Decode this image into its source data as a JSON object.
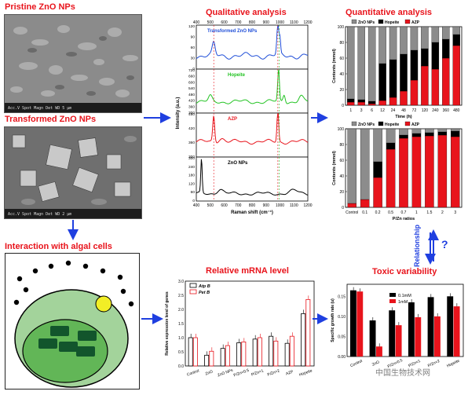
{
  "titles": {
    "pristine": "Pristine ZnO NPs",
    "transformed": "Transformed ZnO NPs",
    "qualitative": "Qualitative analysis",
    "quantitative": "Quantitative analysis",
    "interaction": "Interaction with algal cells",
    "mrna": "Relative mRNA level",
    "toxic": "Toxic variability",
    "relationship": "Relationship",
    "question": "?"
  },
  "sem": {
    "top_caption": "Acc.V  Spot Magn   Det  WD        5 μm",
    "bottom_caption": "Acc.V  Spot Magn   Det  WD        2 μm"
  },
  "colors": {
    "red": "#e8141c",
    "blue": "#1f4ed8",
    "arrow": "#1f3fe0",
    "green": "#22c322",
    "grey": "#8c8c8c",
    "black": "#000000",
    "cell_outer": "#a3d39b",
    "cell_inner": "#62b657",
    "chloroplast": "#12552c",
    "yellow": "#f2ee26"
  },
  "raman": {
    "x_label": "Raman shift (cm⁻¹)",
    "y_label": "Intensity (a.u.)",
    "x_ticks": [
      400,
      500,
      600,
      700,
      800,
      900,
      1000,
      1100,
      1200
    ],
    "panels": [
      {
        "label": "Transformed ZnO NPs",
        "color": "#1f4ed8",
        "y_ticks": [
          0,
          30,
          60,
          90,
          120
        ]
      },
      {
        "label": "Hopeite",
        "color": "#22c322",
        "y_ticks": [
          300,
          360,
          420,
          480,
          540,
          600,
          660,
          720
        ]
      },
      {
        "label": "AZP",
        "color": "#e8141c",
        "y_ticks": [
          300,
          360,
          420,
          480
        ]
      },
      {
        "label": "ZnO NPs",
        "color": "#000000",
        "y_ticks": [
          0,
          60,
          120,
          180,
          240,
          300
        ]
      }
    ]
  },
  "quant_time": {
    "legend": [
      "ZnO NPs",
      "Hopeite",
      "AZP"
    ],
    "x_label": "Time (h)",
    "y_label": "Contents (mmol)",
    "y_ticks": [
      0,
      20,
      40,
      60,
      80,
      100
    ],
    "categories": [
      "1",
      "3",
      "6",
      "12",
      "24",
      "48",
      "72",
      "120",
      "240",
      "360",
      "480"
    ],
    "zno": [
      92,
      93,
      95,
      47,
      42,
      35,
      30,
      28,
      20,
      16,
      10
    ],
    "hopeite": [
      4,
      3,
      3,
      47,
      48,
      47,
      38,
      22,
      34,
      24,
      14
    ],
    "azp": [
      4,
      4,
      2,
      6,
      10,
      18,
      32,
      50,
      46,
      60,
      76
    ]
  },
  "quant_ratio": {
    "legend": [
      "ZnO NPs",
      "Hopeite",
      "AZP"
    ],
    "x_label": "P/Zn ratios",
    "y_label": "Contents (mmol)",
    "y_ticks": [
      0,
      20,
      40,
      60,
      80,
      100
    ],
    "categories": [
      "Control",
      "0.1",
      "0.2",
      "0.5",
      "0.7",
      "1",
      "1.5",
      "2",
      "3"
    ],
    "zno": [
      95,
      90,
      42,
      18,
      8,
      6,
      5,
      4,
      3
    ],
    "hopeite": [
      0,
      0,
      20,
      8,
      4,
      4,
      4,
      4,
      7
    ],
    "azp": [
      5,
      10,
      38,
      74,
      88,
      90,
      91,
      92,
      90
    ]
  },
  "mrna": {
    "y_label": "Relative expression level of genes",
    "y_ticks": [
      0.0,
      0.5,
      1.0,
      1.5,
      2.0,
      2.5,
      3.0
    ],
    "legend": [
      "Atp B",
      "Pet B"
    ],
    "categories": [
      "Control",
      "ZnO",
      "ZnO NPs",
      "P/Zn=0.5",
      "P/Zn=1",
      "P/Zn=2",
      "AZP",
      "Hopeite"
    ],
    "atpb": [
      1.0,
      0.38,
      0.62,
      0.82,
      0.95,
      1.05,
      0.8,
      1.85
    ],
    "petb": [
      1.0,
      0.52,
      0.72,
      0.85,
      1.0,
      0.88,
      1.05,
      2.35
    ]
  },
  "toxic": {
    "y_label": "Specific growth rate (u)",
    "y_ticks": [
      0.0,
      0.05,
      0.1,
      0.15
    ],
    "legend": [
      "0.1mM",
      "1mM"
    ],
    "categories": [
      "Control",
      "ZnO",
      "P/Zn=0.5",
      "P/Zn=1",
      "P/Zn=2",
      "Hopeite"
    ],
    "mm01": [
      0.165,
      0.09,
      0.115,
      0.135,
      0.148,
      0.15
    ],
    "mm1": [
      0.162,
      0.025,
      0.078,
      0.098,
      0.1,
      0.125
    ]
  },
  "watermark": "中国生物技术网"
}
